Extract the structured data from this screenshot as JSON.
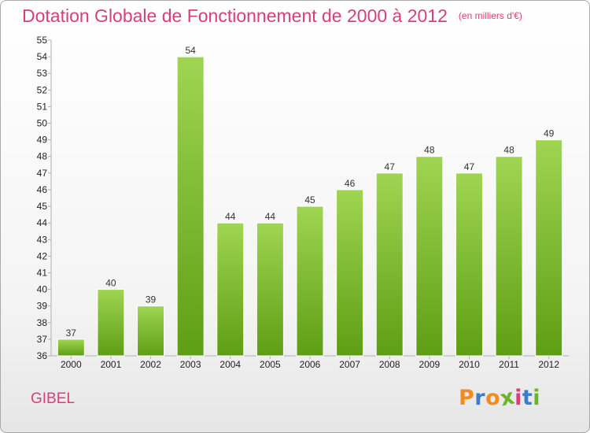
{
  "page": {
    "title": "Dotation Globale de Fonctionnement de 2000 à 2012",
    "subtitle": "(en milliers d'€)",
    "commune": "GIBEL",
    "brand": {
      "letters": [
        "P",
        "r",
        "o",
        "x",
        "i",
        "t",
        "i"
      ],
      "colors": [
        "#f28c1c",
        "#3d7cc9",
        "#f28c1c",
        "#6bb52b",
        "#d5407a",
        "#3d7cc9",
        "#6bb52b"
      ]
    }
  },
  "chart_data": {
    "type": "bar",
    "title": "Dotation Globale de Fonctionnement de 2000 à 2012",
    "subtitle": "(en milliers d'€)",
    "categories": [
      "2000",
      "2001",
      "2002",
      "2003",
      "2004",
      "2005",
      "2006",
      "2007",
      "2008",
      "2009",
      "2010",
      "2011",
      "2012"
    ],
    "values": [
      37,
      40,
      39,
      54,
      44,
      44,
      45,
      46,
      47,
      48,
      47,
      48,
      49
    ],
    "ylim": [
      36,
      55
    ],
    "yticks": [
      36,
      37,
      38,
      39,
      40,
      41,
      42,
      43,
      44,
      45,
      46,
      47,
      48,
      49,
      50,
      51,
      52,
      53,
      54,
      55
    ],
    "xlabel": "",
    "ylabel": "",
    "grid": false,
    "legend": "none",
    "bar_color": "#7dc233"
  }
}
